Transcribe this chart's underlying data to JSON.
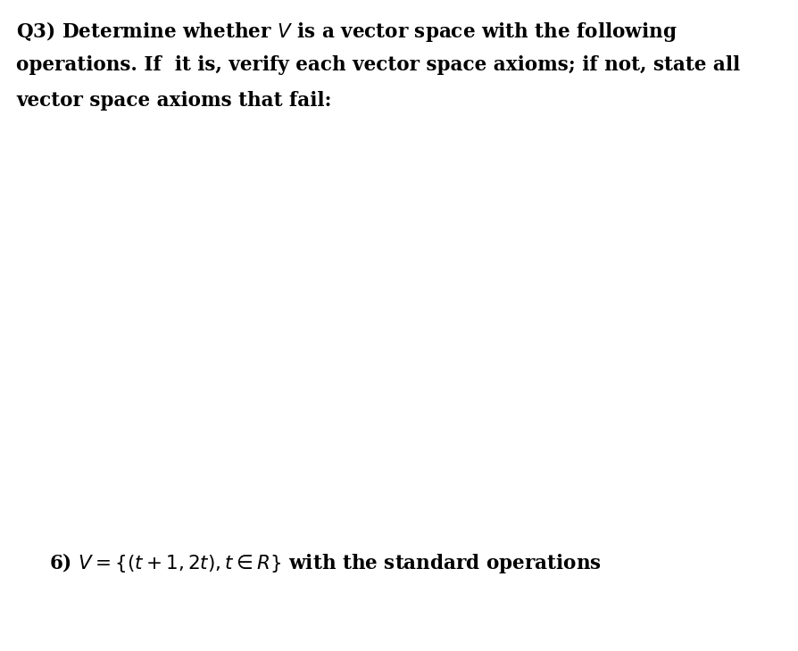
{
  "background_color": "#ffffff",
  "title_text_line1": "Q3) Determine whether $V$ is a vector space with the following",
  "title_text_line2": "operations. If  it is, verify each vector space axioms; if not, state all",
  "title_text_line3": "vector space axioms that fail:",
  "bottom_text": "6) $V = \\{(t + 1, 2t), t \\in R\\}$ with the standard operations",
  "text_color": "#000000",
  "font_size_title": 15.5,
  "font_size_bottom": 15.5,
  "figwidth": 8.94,
  "figheight": 7.3,
  "dpi": 100
}
